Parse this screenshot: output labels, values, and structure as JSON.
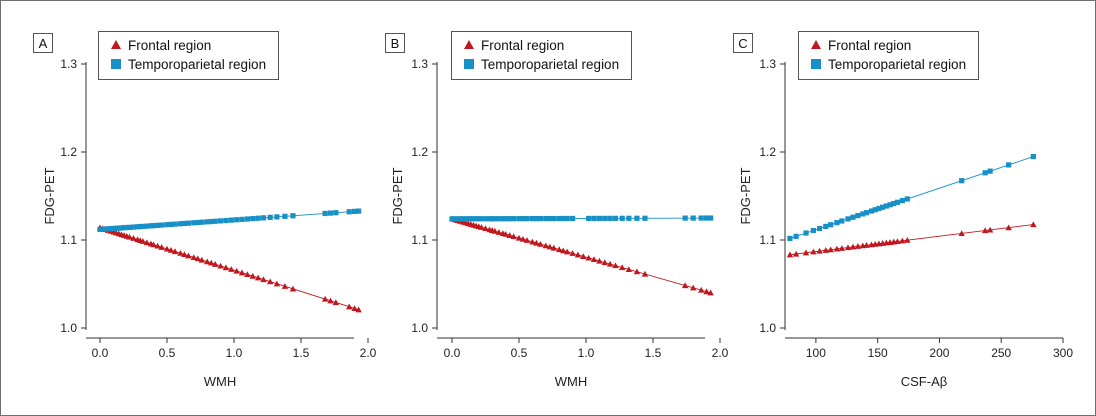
{
  "colors": {
    "frontal": "#c0181f",
    "temporoparietal": "#1690c7",
    "axis": "#333333",
    "frame": "#6f6f6f"
  },
  "chart_data": [
    {
      "type": "scatter",
      "panel_label": "A",
      "xlabel": "WMH",
      "ylabel": "FDG-PET",
      "xlim": [
        0,
        2.0
      ],
      "ylim": [
        1.0,
        1.3
      ],
      "x_ticks": [
        "0.0",
        "0.5",
        "1.0",
        "1.5",
        "2.0"
      ],
      "y_ticks": [
        "1.0",
        "1.1",
        "1.2",
        "1.3"
      ],
      "x_tick_values": [
        0,
        0.5,
        1.0,
        1.5,
        2.0
      ],
      "y_tick_values": [
        1.0,
        1.1,
        1.2,
        1.3
      ],
      "grid": false,
      "legend_position": "top-left",
      "series": [
        {
          "name": "Frontal region",
          "marker": "triangle",
          "fit": {
            "intercept": 1.114,
            "slope": -0.0483
          },
          "x": [
            0.0,
            0.02,
            0.04,
            0.06,
            0.08,
            0.1,
            0.12,
            0.14,
            0.16,
            0.18,
            0.2,
            0.22,
            0.25,
            0.28,
            0.3,
            0.32,
            0.35,
            0.38,
            0.4,
            0.43,
            0.46,
            0.5,
            0.53,
            0.56,
            0.6,
            0.63,
            0.66,
            0.7,
            0.73,
            0.76,
            0.8,
            0.83,
            0.86,
            0.9,
            0.94,
            0.98,
            1.02,
            1.06,
            1.1,
            1.14,
            1.18,
            1.22,
            1.27,
            1.32,
            1.38,
            1.44,
            1.68,
            1.72,
            1.76,
            1.86,
            1.9,
            1.93
          ]
        },
        {
          "name": "Temporoparietal region",
          "marker": "square",
          "fit": {
            "intercept": 1.112,
            "slope": 0.0108
          },
          "x": [
            0.0,
            0.02,
            0.04,
            0.06,
            0.08,
            0.1,
            0.12,
            0.14,
            0.16,
            0.18,
            0.2,
            0.22,
            0.25,
            0.28,
            0.3,
            0.32,
            0.35,
            0.38,
            0.4,
            0.43,
            0.46,
            0.5,
            0.53,
            0.56,
            0.6,
            0.63,
            0.66,
            0.7,
            0.73,
            0.76,
            0.8,
            0.83,
            0.86,
            0.9,
            0.94,
            0.98,
            1.02,
            1.06,
            1.1,
            1.14,
            1.18,
            1.22,
            1.27,
            1.32,
            1.38,
            1.44,
            1.68,
            1.72,
            1.76,
            1.86,
            1.9,
            1.93
          ]
        }
      ]
    },
    {
      "type": "scatter",
      "panel_label": "B",
      "xlabel": "WMH",
      "ylabel": "FDG-PET",
      "xlim": [
        0,
        2.0
      ],
      "ylim": [
        1.0,
        1.3
      ],
      "x_ticks": [
        "0.0",
        "0.5",
        "1.0",
        "1.5",
        "2.0"
      ],
      "y_ticks": [
        "1.0",
        "1.1",
        "1.2",
        "1.3"
      ],
      "x_tick_values": [
        0,
        0.5,
        1.0,
        1.5,
        2.0
      ],
      "y_tick_values": [
        1.0,
        1.1,
        1.2,
        1.3
      ],
      "grid": false,
      "legend_position": "top-left",
      "series": [
        {
          "name": "Frontal region",
          "marker": "triangle",
          "fit": {
            "intercept": 1.124,
            "slope": -0.0435
          },
          "x": [
            0.0,
            0.02,
            0.04,
            0.06,
            0.08,
            0.1,
            0.12,
            0.14,
            0.16,
            0.18,
            0.2,
            0.22,
            0.25,
            0.28,
            0.3,
            0.32,
            0.35,
            0.38,
            0.4,
            0.43,
            0.46,
            0.5,
            0.53,
            0.56,
            0.6,
            0.63,
            0.66,
            0.7,
            0.73,
            0.76,
            0.8,
            0.83,
            0.86,
            0.9,
            0.94,
            0.98,
            1.02,
            1.06,
            1.1,
            1.14,
            1.18,
            1.22,
            1.27,
            1.32,
            1.38,
            1.44,
            1.74,
            1.8,
            1.86,
            1.9,
            1.93
          ]
        },
        {
          "name": "Temporoparietal region",
          "marker": "square",
          "fit": {
            "intercept": 1.124,
            "slope": 0.0005
          },
          "x": [
            0.0,
            0.02,
            0.04,
            0.06,
            0.08,
            0.1,
            0.12,
            0.14,
            0.16,
            0.18,
            0.2,
            0.22,
            0.25,
            0.28,
            0.3,
            0.32,
            0.35,
            0.38,
            0.4,
            0.43,
            0.46,
            0.5,
            0.53,
            0.56,
            0.6,
            0.63,
            0.66,
            0.7,
            0.73,
            0.76,
            0.8,
            0.83,
            0.86,
            0.9,
            1.02,
            1.06,
            1.1,
            1.14,
            1.18,
            1.22,
            1.27,
            1.32,
            1.38,
            1.44,
            1.74,
            1.8,
            1.86,
            1.9,
            1.93
          ]
        }
      ]
    },
    {
      "type": "scatter",
      "panel_label": "C",
      "xlabel": "CSF-Aβ",
      "ylabel": "FDG-PET",
      "xlim": [
        75,
        300
      ],
      "ylim": [
        1.0,
        1.3
      ],
      "x_ticks": [
        "100",
        "150",
        "200",
        "250",
        "300"
      ],
      "y_ticks": [
        "1.0",
        "1.1",
        "1.2",
        "1.3"
      ],
      "x_tick_values": [
        100,
        150,
        200,
        250,
        300
      ],
      "y_tick_values": [
        1.0,
        1.1,
        1.2,
        1.3
      ],
      "grid": false,
      "legend_position": "top-left",
      "series": [
        {
          "name": "Frontal region",
          "marker": "triangle",
          "fit": {
            "intercept": 1.0695,
            "slope": 0.000174
          },
          "x": [
            79,
            84,
            92,
            98,
            103,
            108,
            112,
            117,
            121,
            126,
            130,
            134,
            138,
            141,
            145,
            148,
            151,
            154,
            157,
            160,
            163,
            166,
            170,
            174,
            218,
            237,
            241,
            256,
            276
          ]
        },
        {
          "name": "Temporoparietal region",
          "marker": "square",
          "fit": {
            "intercept": 1.0645,
            "slope": 0.000472
          },
          "x": [
            79,
            84,
            92,
            98,
            103,
            108,
            112,
            117,
            121,
            126,
            130,
            134,
            138,
            141,
            145,
            148,
            151,
            154,
            157,
            160,
            163,
            166,
            170,
            174,
            218,
            237,
            241,
            256,
            276
          ]
        }
      ]
    }
  ]
}
